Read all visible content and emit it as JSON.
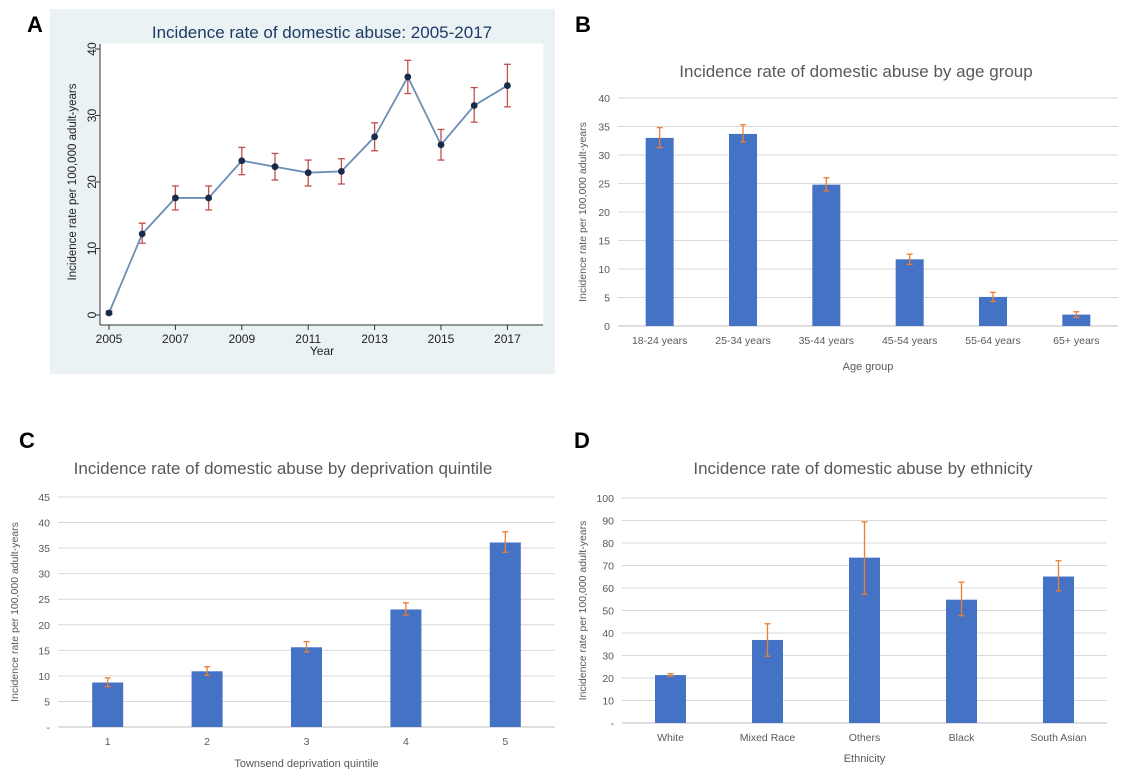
{
  "panels": [
    {
      "letter": "A"
    },
    {
      "letter": "B"
    },
    {
      "letter": "C"
    },
    {
      "letter": "D"
    }
  ],
  "colors": {
    "panel_a_background": "#eaf2f3",
    "line": "#6b8fb5",
    "marker": "#1a2a4a",
    "bar": "#4472c4",
    "error_bar_a": "#c0504d",
    "error_bar": "#ed7d31",
    "text": "#595959"
  },
  "chart_data": [
    {
      "type": "line",
      "title": "Incidence rate of domestic abuse: 2005-2017",
      "xlabel": "Year",
      "ylabel": "Incidence rate per 100,000 adult-years",
      "x": [
        2005,
        2006,
        2007,
        2008,
        2009,
        2010,
        2011,
        2012,
        2013,
        2014,
        2015,
        2016,
        2017
      ],
      "values": [
        0.3,
        12.2,
        17.6,
        17.6,
        23.2,
        22.3,
        21.4,
        21.6,
        26.8,
        35.8,
        25.6,
        31.5,
        34.5
      ],
      "error_low": [
        0.1,
        10.8,
        15.8,
        15.8,
        21.1,
        20.3,
        19.4,
        19.7,
        24.7,
        33.3,
        23.3,
        29.0,
        31.3
      ],
      "error_high": [
        0.6,
        13.8,
        19.4,
        19.4,
        25.2,
        24.3,
        23.3,
        23.5,
        28.9,
        38.3,
        27.9,
        34.2,
        37.7
      ],
      "xticks": [
        "2005",
        "2007",
        "2009",
        "2011",
        "2013",
        "2015",
        "2017"
      ],
      "yticks": [
        "0",
        "10",
        "20",
        "30",
        "40"
      ],
      "xlim": [
        2005,
        2018.2
      ],
      "ylim": [
        -1,
        40
      ]
    },
    {
      "type": "bar",
      "title": "Incidence rate of domestic abuse by age group",
      "xlabel": "Age group",
      "ylabel": "Incidence rate per 100,000 adult-years",
      "categories": [
        "18-24 years",
        "25-34 years",
        "35-44 years",
        "45-54 years",
        "55-64 years",
        "65+ years"
      ],
      "values": [
        33.0,
        33.7,
        24.8,
        11.7,
        5.1,
        2.0
      ],
      "error_low": [
        31.3,
        32.3,
        23.7,
        10.8,
        4.3,
        1.5
      ],
      "error_high": [
        34.8,
        35.3,
        26.0,
        12.6,
        5.9,
        2.5
      ],
      "yticks": [
        "0",
        "5",
        "10",
        "15",
        "20",
        "25",
        "30",
        "35",
        "40"
      ],
      "ylim": [
        0,
        40
      ]
    },
    {
      "type": "bar",
      "title": "Incidence rate of domestic abuse by deprivation quintile",
      "xlabel": "Townsend deprivation quintile",
      "ylabel": "Incidence rate per 100,000 adult-years",
      "categories": [
        "1",
        "2",
        "3",
        "4",
        "5"
      ],
      "values": [
        8.7,
        10.9,
        15.6,
        23.0,
        36.1
      ],
      "error_low": [
        7.9,
        10.1,
        14.7,
        21.9,
        34.2
      ],
      "error_high": [
        9.6,
        11.8,
        16.7,
        24.3,
        38.2
      ],
      "yticks": [
        "-",
        "5",
        "10",
        "15",
        "20",
        "25",
        "30",
        "35",
        "40",
        "45"
      ],
      "ylim": [
        0,
        45
      ]
    },
    {
      "type": "bar",
      "title": "Incidence rate of domestic abuse by ethnicity",
      "xlabel": "Ethnicity",
      "ylabel": "Incidence rate per 100,000 adult-years",
      "categories": [
        "White",
        "Mixed Race",
        "Others",
        "Black",
        "South Asian"
      ],
      "values": [
        21.3,
        36.9,
        73.5,
        54.8,
        65.1
      ],
      "error_low": [
        20.7,
        29.7,
        57.2,
        47.7,
        58.7
      ],
      "error_high": [
        21.9,
        44.1,
        89.4,
        62.6,
        72.1
      ],
      "yticks": [
        "-",
        "10",
        "20",
        "30",
        "40",
        "50",
        "60",
        "70",
        "80",
        "90",
        "100"
      ],
      "ylim": [
        0,
        100
      ]
    }
  ]
}
